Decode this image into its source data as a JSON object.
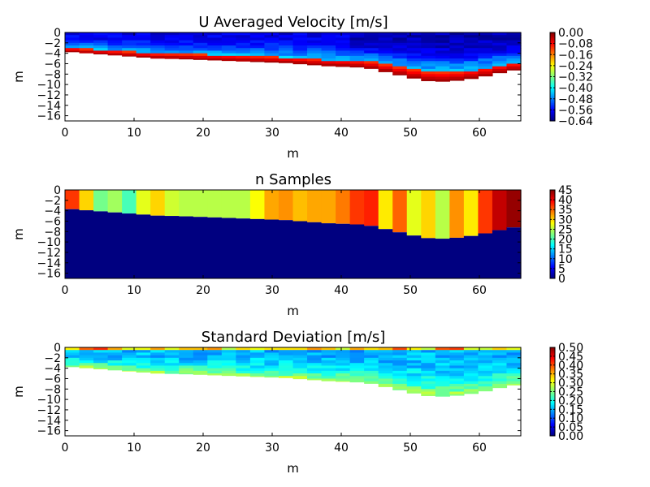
{
  "chart_data": [
    {
      "type": "heatmap",
      "title": "U Averaged Velocity [m/s]",
      "xlabel": "m",
      "ylabel": "m",
      "xlim": [
        0,
        66
      ],
      "ylim": [
        -17,
        0
      ],
      "x_ticks": [
        "0",
        "10",
        "20",
        "30",
        "40",
        "50",
        "60"
      ],
      "y_ticks": [
        "0",
        "−2",
        "−4",
        "−6",
        "−8",
        "−10",
        "−12",
        "−14",
        "−16"
      ],
      "colorbar": {
        "range": [
          -0.64,
          0.0
        ],
        "ticks": [
          "0.00",
          "−0.08",
          "−0.16",
          "−0.24",
          "−0.32",
          "−0.40",
          "−0.48",
          "−0.56",
          "−0.64"
        ]
      },
      "bed_profile": {
        "x": [
          0,
          2,
          4,
          6,
          8,
          10,
          12,
          14,
          16,
          18,
          20,
          22,
          24,
          26,
          28,
          30,
          32,
          34,
          36,
          38,
          40,
          42,
          44,
          46,
          48,
          50,
          52,
          54,
          56,
          58,
          60,
          62,
          64,
          66
        ],
        "depth": [
          -3.6,
          -3.8,
          -4.0,
          -4.2,
          -4.4,
          -4.6,
          -4.8,
          -5.0,
          -5.0,
          -5.1,
          -5.2,
          -5.3,
          -5.4,
          -5.5,
          -5.6,
          -5.7,
          -5.8,
          -6.0,
          -6.2,
          -6.4,
          -6.5,
          -6.6,
          -6.8,
          -7.4,
          -8.0,
          -8.6,
          -9.2,
          -9.4,
          -9.3,
          -9.0,
          -8.6,
          -8.0,
          -7.4,
          -7.0
        ]
      }
    },
    {
      "type": "heatmap",
      "title": "n Samples",
      "xlabel": "m",
      "ylabel": "m",
      "xlim": [
        0,
        66
      ],
      "ylim": [
        -17,
        0
      ],
      "x_ticks": [
        "0",
        "10",
        "20",
        "30",
        "40",
        "50",
        "60"
      ],
      "y_ticks": [
        "0",
        "−2",
        "−4",
        "−6",
        "−8",
        "−10",
        "−12",
        "−14",
        "−16"
      ],
      "colorbar": {
        "range": [
          0,
          45
        ],
        "ticks": [
          "45",
          "40",
          "35",
          "30",
          "25",
          "20",
          "15",
          "10",
          "5",
          "0"
        ]
      },
      "column_values": [
        37,
        30,
        22,
        24,
        20,
        27,
        30,
        26,
        25,
        25,
        25,
        25,
        25,
        28,
        32,
        33,
        31,
        32,
        32,
        34,
        37,
        38,
        29,
        35,
        27,
        30,
        25,
        33,
        29,
        37,
        42,
        44
      ]
    },
    {
      "type": "heatmap",
      "title": "Standard Deviation [m/s]",
      "xlabel": "m",
      "ylabel": "m",
      "xlim": [
        0,
        66
      ],
      "ylim": [
        -17,
        0
      ],
      "x_ticks": [
        "0",
        "10",
        "20",
        "30",
        "40",
        "50",
        "60"
      ],
      "y_ticks": [
        "0",
        "−2",
        "−4",
        "−6",
        "−8",
        "−10",
        "−12",
        "−14",
        "−16"
      ],
      "colorbar": {
        "range": [
          0.0,
          0.5
        ],
        "ticks": [
          "0.50",
          "0.45",
          "0.40",
          "0.35",
          "0.30",
          "0.25",
          "0.20",
          "0.15",
          "0.10",
          "0.05",
          "0.00"
        ]
      }
    }
  ]
}
